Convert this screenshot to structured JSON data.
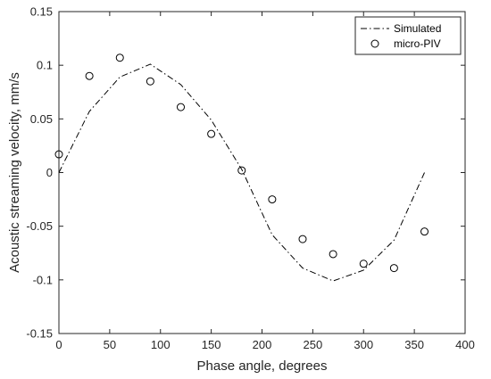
{
  "chart_data": {
    "type": "line",
    "xlabel": "Phase angle, degrees",
    "ylabel": "Acoustic streaming velocity, mm/s",
    "xlim": [
      0,
      400
    ],
    "ylim": [
      -0.15,
      0.15
    ],
    "xticks": [
      0,
      50,
      100,
      150,
      200,
      250,
      300,
      350,
      400
    ],
    "yticks": [
      -0.15,
      -0.1,
      -0.05,
      0,
      0.05,
      0.1,
      0.15
    ],
    "xtick_labels": [
      "0",
      "50",
      "100",
      "150",
      "200",
      "250",
      "300",
      "350",
      "400"
    ],
    "ytick_labels": [
      "-0.15",
      "-0.1",
      "-0.05",
      "0",
      "0.05",
      "0.1",
      "0.15"
    ],
    "grid": false,
    "legend_position": "top-right",
    "series": [
      {
        "name": "Simulated",
        "style": "dash-dot line",
        "color": "#000000",
        "x": [
          0,
          30,
          60,
          90,
          120,
          150,
          180,
          210,
          240,
          270,
          300,
          330,
          360
        ],
        "y": [
          0,
          0.057,
          0.089,
          0.101,
          0.082,
          0.049,
          0.003,
          -0.058,
          -0.089,
          -0.101,
          -0.091,
          -0.063,
          0
        ]
      },
      {
        "name": "micro-PIV",
        "style": "open circle markers",
        "color": "#000000",
        "x": [
          0,
          30,
          60,
          90,
          120,
          150,
          180,
          210,
          240,
          270,
          300,
          330,
          360
        ],
        "y": [
          0.017,
          0.09,
          0.107,
          0.085,
          0.061,
          0.036,
          0.002,
          -0.025,
          -0.062,
          -0.076,
          -0.085,
          -0.089,
          -0.055
        ]
      }
    ]
  }
}
